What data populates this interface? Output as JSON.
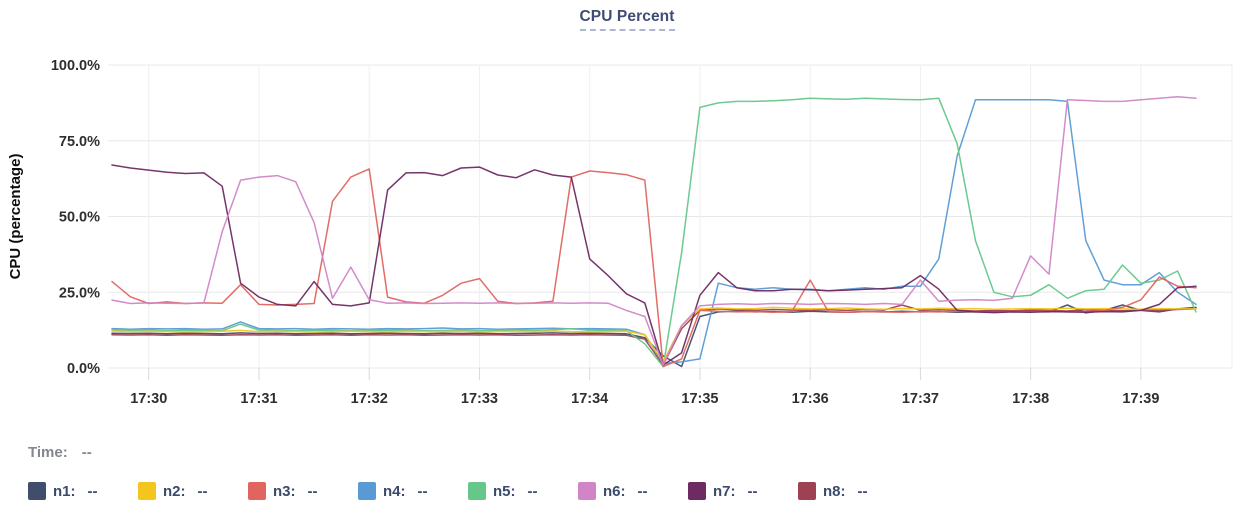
{
  "title": "CPU Percent",
  "time_row": {
    "label": "Time:",
    "value": "--"
  },
  "legend": [
    {
      "id": "n1",
      "label": "n1:",
      "value": "--",
      "color": "#3f4e6c"
    },
    {
      "id": "n2",
      "label": "n2:",
      "value": "--",
      "color": "#f3c51d"
    },
    {
      "id": "n3",
      "label": "n3:",
      "value": "--",
      "color": "#e0655e"
    },
    {
      "id": "n4",
      "label": "n4:",
      "value": "--",
      "color": "#599ad4"
    },
    {
      "id": "n5",
      "label": "n5:",
      "value": "--",
      "color": "#65c78a"
    },
    {
      "id": "n6",
      "label": "n6:",
      "value": "--",
      "color": "#d285c6"
    },
    {
      "id": "n7",
      "label": "n7:",
      "value": "--",
      "color": "#6e2b62"
    },
    {
      "id": "n8",
      "label": "n8:",
      "value": "--",
      "color": "#9e4152"
    }
  ],
  "chart_data": {
    "type": "line",
    "title": "CPU Percent",
    "xlabel": "",
    "ylabel": "CPU (percentage)",
    "ylim": [
      0,
      100
    ],
    "grid": true,
    "y_ticks": [
      "0.0%",
      "25.0%",
      "50.0%",
      "75.0%",
      "100.0%"
    ],
    "x_tick_labels": [
      "17:30",
      "17:31",
      "17:32",
      "17:33",
      "17:34",
      "17:35",
      "17:36",
      "17:37",
      "17:38",
      "17:39"
    ],
    "x_tick_first_index": 2,
    "x_tick_step": 6,
    "points_per_series": 60,
    "sample_interval_seconds": 10,
    "draw_order": [
      "n1",
      "n8",
      "n4",
      "n5",
      "n2",
      "n3",
      "n7",
      "n6"
    ],
    "series": [
      {
        "name": "n1",
        "color": "#3f4e6c",
        "values": [
          11.5,
          11.4,
          11.5,
          11.3,
          11.5,
          11.4,
          11.3,
          11.6,
          11.4,
          11.5,
          11.3,
          11.4,
          11.5,
          11.3,
          11.4,
          11.5,
          11.4,
          11.3,
          11.5,
          11.4,
          11.5,
          11.3,
          11.4,
          11.5,
          11.6,
          11.4,
          11.5,
          11.4,
          11.3,
          10,
          4,
          0.5,
          17,
          18.5,
          18.8,
          18.5,
          18.6,
          18.4,
          18.7,
          18.5,
          18.4,
          18.6,
          18.5,
          18.7,
          18.5,
          18.6,
          18.4,
          18.5,
          18.7,
          18.5,
          18.6,
          18.5,
          20.8,
          18.2,
          19,
          20.8,
          19,
          18.5,
          19.5,
          20
        ]
      },
      {
        "name": "n2",
        "color": "#f3c51d",
        "values": [
          12.2,
          12,
          12.1,
          12,
          11.9,
          12,
          12.1,
          12.4,
          12,
          12.1,
          12,
          11.9,
          12,
          12.1,
          12,
          11.9,
          12.1,
          12,
          12,
          12.1,
          11.9,
          12,
          12.1,
          12,
          12.2,
          12,
          11.9,
          12,
          12.1,
          11,
          2,
          14,
          19.5,
          19.8,
          19.5,
          19.6,
          20,
          19.7,
          19.5,
          19.6,
          19.8,
          19.5,
          19.4,
          19.6,
          19.5,
          19.7,
          19.5,
          19.6,
          19.4,
          19.5,
          19.6,
          19.5,
          19.7,
          19.5,
          19.6,
          19.5,
          19.4,
          19.6,
          19.5,
          19.5
        ]
      },
      {
        "name": "n3",
        "color": "#e0655e",
        "values": [
          28.5,
          23.5,
          21.3,
          21.8,
          21.3,
          21.5,
          21.4,
          27.5,
          21,
          20.8,
          21,
          21.3,
          55,
          63,
          65.7,
          23.4,
          21.8,
          21.4,
          24,
          28,
          29.5,
          22,
          21.3,
          21.5,
          22,
          63,
          65,
          64.5,
          63.8,
          62,
          0.5,
          3,
          19,
          18.7,
          18.5,
          18.6,
          18.4,
          18.6,
          29,
          18.5,
          18.4,
          18.6,
          18.5,
          18.4,
          18.6,
          18.5,
          18.7,
          18.5,
          18.4,
          18.6,
          18.5,
          18.7,
          18.5,
          18.6,
          19,
          20,
          22.5,
          30,
          27,
          26.5
        ]
      },
      {
        "name": "n4",
        "color": "#599ad4",
        "values": [
          13,
          12.8,
          13,
          12.9,
          13,
          12.8,
          12.9,
          15.2,
          13,
          12.9,
          13,
          12.8,
          13,
          12.9,
          12.8,
          13,
          12.9,
          13,
          13.2,
          12.9,
          13,
          12.8,
          12.9,
          13,
          13.1,
          12.9,
          13,
          12.9,
          12.8,
          11,
          1.5,
          2,
          3,
          28,
          26.5,
          26,
          26.5,
          26,
          26,
          25.5,
          26,
          26.5,
          26,
          27,
          27,
          36,
          70,
          88.5,
          88.5,
          88.5,
          88.5,
          88.5,
          88,
          42,
          29,
          27.5,
          27.5,
          31.5,
          25,
          21
        ]
      },
      {
        "name": "n5",
        "color": "#65c78a",
        "values": [
          12.5,
          12.4,
          12.5,
          12.3,
          12.5,
          12.4,
          12.3,
          14.5,
          12.5,
          12.4,
          12.3,
          12.5,
          12.4,
          12.3,
          12.5,
          12.4,
          12.5,
          12.3,
          12.4,
          12.5,
          12.3,
          12.4,
          12.5,
          12.4,
          12.6,
          13,
          12.4,
          12.5,
          12.3,
          8,
          0.5,
          38,
          86,
          87.5,
          88,
          88,
          88.2,
          88.5,
          89,
          88.8,
          88.7,
          89,
          88.8,
          88.6,
          88.5,
          89,
          74,
          42,
          25,
          23.5,
          24,
          27.5,
          23,
          25.5,
          26,
          34,
          28,
          29,
          32,
          18.5
        ]
      },
      {
        "name": "n6",
        "color": "#d285c6",
        "values": [
          22.4,
          21.3,
          21.5,
          21.4,
          21.3,
          21.5,
          45,
          62,
          63,
          63.5,
          61.5,
          48,
          23,
          33.3,
          22.5,
          21.4,
          21.5,
          21.3,
          21.4,
          21.5,
          21.4,
          21.5,
          21.3,
          21.4,
          21.5,
          21.4,
          21.5,
          21.4,
          19,
          17,
          1,
          14,
          20.5,
          21,
          21.2,
          21,
          21.3,
          21.2,
          21,
          21.3,
          21.2,
          21,
          21.3,
          21,
          29,
          22,
          22.4,
          22.5,
          22.3,
          23,
          37,
          31,
          88.5,
          88.3,
          88,
          88,
          88.5,
          89,
          89.5,
          89
        ]
      },
      {
        "name": "n7",
        "color": "#6e2b62",
        "values": [
          67,
          66,
          65.3,
          64.6,
          64.2,
          64.4,
          60,
          28,
          23.4,
          21,
          20.5,
          28.5,
          21,
          20.5,
          21.5,
          58.7,
          64.4,
          64.5,
          63.5,
          66,
          66.3,
          63.7,
          62.8,
          65.4,
          63.7,
          63,
          36,
          30.5,
          24.5,
          21.5,
          1,
          5,
          24,
          31.5,
          26.5,
          25.5,
          25.5,
          26,
          25.8,
          25.5,
          25.7,
          26,
          26.2,
          26.5,
          30.5,
          26,
          19,
          18.5,
          18.3,
          18.5,
          18.4,
          18.6,
          18.5,
          18.4,
          18.6,
          18.5,
          19,
          21,
          26.5,
          27
        ]
      },
      {
        "name": "n8",
        "color": "#9e4152",
        "values": [
          11,
          10.9,
          11,
          10.8,
          11,
          10.9,
          10.8,
          11,
          10.9,
          11,
          10.8,
          10.9,
          11,
          10.8,
          11,
          10.9,
          11,
          10.8,
          10.9,
          11,
          10.9,
          11,
          10.8,
          10.9,
          11,
          10.9,
          11,
          10.9,
          10.8,
          9.5,
          1,
          13,
          19,
          19.5,
          19.2,
          19,
          19.3,
          19.1,
          19,
          19.2,
          19,
          19.3,
          19.1,
          20.8,
          19,
          19.2,
          19,
          18.8,
          19,
          18.9,
          19.1,
          19,
          18.8,
          19.2,
          19,
          18.9,
          19.1,
          19,
          19.3,
          19.5
        ]
      }
    ]
  }
}
